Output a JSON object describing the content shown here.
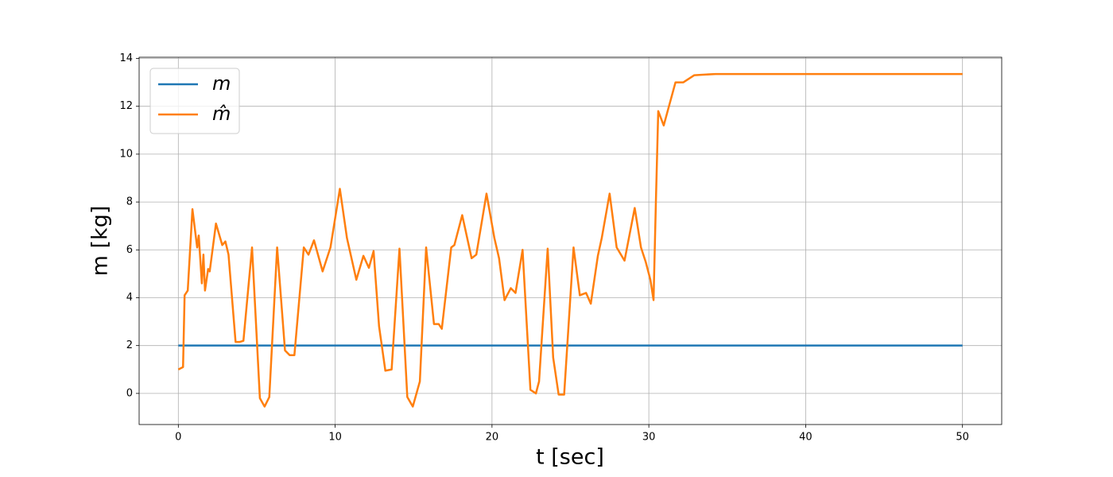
{
  "chart_data": {
    "type": "line",
    "x_label": "t [sec]",
    "y_label": "m [kg]",
    "xlim": [
      -2.5,
      52.5
    ],
    "ylim": [
      -1.3,
      14.05
    ],
    "xticks": [
      0,
      10,
      20,
      30,
      40,
      50
    ],
    "yticks": [
      0,
      2,
      4,
      6,
      8,
      10,
      12,
      14
    ],
    "grid": true,
    "legend": "upper left",
    "x": [
      0,
      0.3,
      0.4,
      0.6,
      0.9,
      1.2,
      1.3,
      1.5,
      1.6,
      1.7,
      1.9,
      2.0,
      2.4,
      2.8,
      3.0,
      3.2,
      3.65,
      3.9,
      4.15,
      4.7,
      5.2,
      5.5,
      5.8,
      6.3,
      6.8,
      7.1,
      7.4,
      8.0,
      8.3,
      8.65,
      9.2,
      9.7,
      10.3,
      10.75,
      11.35,
      11.8,
      12.15,
      12.45,
      12.8,
      13.2,
      13.6,
      14.1,
      14.6,
      14.95,
      15.4,
      15.8,
      16.3,
      16.6,
      16.8,
      17.4,
      17.6,
      18.1,
      18.7,
      19.0,
      19.65,
      20.15,
      20.45,
      20.8,
      21.2,
      21.5,
      21.95,
      22.45,
      22.8,
      23.0,
      23.55,
      23.9,
      24.25,
      24.6,
      25.2,
      25.6,
      26.0,
      26.3,
      26.75,
      27.0,
      27.5,
      27.95,
      28.45,
      29.1,
      29.5,
      29.8,
      30.1,
      30.3,
      30.45,
      30.6,
      30.95,
      31.2,
      31.7,
      32.2,
      32.9,
      34.25,
      50
    ],
    "series": [
      {
        "name": "m",
        "color": "#1f77b4",
        "values": [
          2,
          2,
          2,
          2,
          2,
          2,
          2,
          2,
          2,
          2,
          2,
          2,
          2,
          2,
          2,
          2,
          2,
          2,
          2,
          2,
          2,
          2,
          2,
          2,
          2,
          2,
          2,
          2,
          2,
          2,
          2,
          2,
          2,
          2,
          2,
          2,
          2,
          2,
          2,
          2,
          2,
          2,
          2,
          2,
          2,
          2,
          2,
          2,
          2,
          2,
          2,
          2,
          2,
          2,
          2,
          2,
          2,
          2,
          2,
          2,
          2,
          2,
          2,
          2,
          2,
          2,
          2,
          2,
          2,
          2,
          2,
          2,
          2,
          2,
          2,
          2,
          2,
          2,
          2,
          2,
          2,
          2,
          2,
          2,
          2,
          2,
          2,
          2,
          2,
          2,
          2
        ]
      },
      {
        "name": "m̂",
        "color": "#ff7f0e",
        "values": [
          1.0,
          1.1,
          4.1,
          4.3,
          7.7,
          6.1,
          6.6,
          4.6,
          5.8,
          4.3,
          5.2,
          5.1,
          7.1,
          6.2,
          6.35,
          5.8,
          2.15,
          2.15,
          2.2,
          6.1,
          -0.2,
          -0.55,
          -0.15,
          6.1,
          1.8,
          1.6,
          1.6,
          6.1,
          5.8,
          6.4,
          5.1,
          6.1,
          8.55,
          6.5,
          4.75,
          5.75,
          5.25,
          5.95,
          2.8,
          0.95,
          1.0,
          6.05,
          -0.15,
          -0.55,
          0.5,
          6.1,
          2.9,
          2.9,
          2.7,
          6.1,
          6.2,
          7.45,
          5.65,
          5.8,
          8.35,
          6.5,
          5.65,
          3.9,
          4.4,
          4.2,
          6.0,
          0.15,
          0,
          0.5,
          6.05,
          1.5,
          -0.05,
          -0.05,
          6.1,
          4.1,
          4.2,
          3.75,
          5.75,
          6.5,
          8.35,
          6.1,
          5.55,
          7.75,
          6.1,
          5.5,
          4.75,
          3.9,
          8.0,
          11.8,
          11.2,
          11.8,
          13.0,
          13.0,
          13.3,
          13.35,
          13.35
        ]
      }
    ]
  }
}
